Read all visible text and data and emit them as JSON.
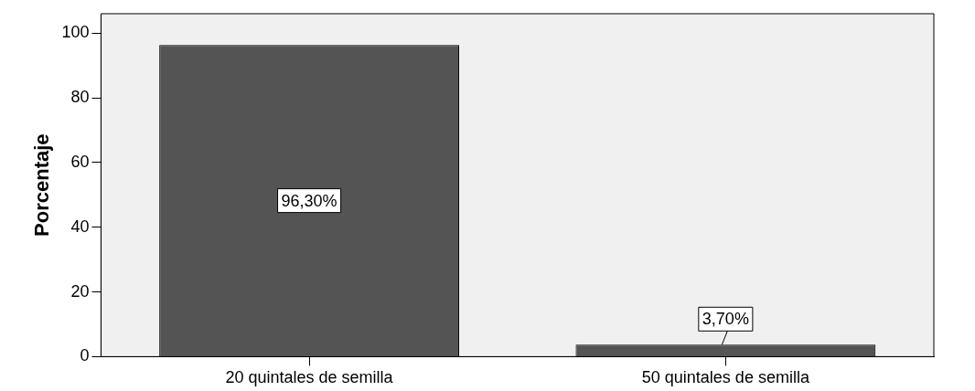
{
  "chart_data": {
    "type": "bar",
    "ylabel": "Porcentaje",
    "categories": [
      "20 quintales de semilla",
      "50 quintales de semilla"
    ],
    "values": [
      96.3,
      3.7
    ],
    "value_labels": [
      "96,30%",
      "3,70%"
    ],
    "color": "#545454",
    "ylim": [
      0,
      106
    ],
    "yticks": [
      0,
      20,
      40,
      60,
      80,
      100
    ],
    "grid": false,
    "legend": false
  }
}
